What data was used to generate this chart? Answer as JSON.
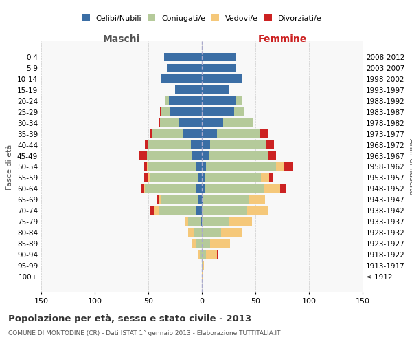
{
  "age_groups": [
    "100+",
    "95-99",
    "90-94",
    "85-89",
    "80-84",
    "75-79",
    "70-74",
    "65-69",
    "60-64",
    "55-59",
    "50-54",
    "45-49",
    "40-44",
    "35-39",
    "30-34",
    "25-29",
    "20-24",
    "15-19",
    "10-14",
    "5-9",
    "0-4"
  ],
  "birth_years": [
    "≤ 1912",
    "1913-1917",
    "1918-1922",
    "1923-1927",
    "1928-1932",
    "1933-1937",
    "1938-1942",
    "1943-1947",
    "1948-1952",
    "1953-1957",
    "1958-1962",
    "1963-1967",
    "1968-1972",
    "1973-1977",
    "1978-1982",
    "1983-1987",
    "1988-1992",
    "1993-1997",
    "1998-2002",
    "2003-2007",
    "2008-2012"
  ],
  "colors": {
    "celibi": "#3b6ea5",
    "coniugati": "#b5ca9a",
    "vedovi": "#f5c87a",
    "divorziati": "#cc2222"
  },
  "males": {
    "celibi": [
      0,
      0,
      0,
      0,
      0,
      1,
      5,
      3,
      5,
      4,
      5,
      9,
      10,
      18,
      22,
      30,
      31,
      25,
      38,
      33,
      35
    ],
    "coniugati": [
      0,
      0,
      2,
      5,
      8,
      12,
      35,
      35,
      48,
      45,
      45,
      42,
      40,
      28,
      17,
      8,
      3,
      0,
      0,
      0,
      0
    ],
    "vedovi": [
      0,
      0,
      2,
      4,
      5,
      3,
      5,
      2,
      1,
      1,
      1,
      0,
      0,
      0,
      0,
      0,
      0,
      0,
      0,
      0,
      0
    ],
    "divorziati": [
      0,
      0,
      0,
      0,
      0,
      0,
      3,
      2,
      3,
      4,
      3,
      8,
      3,
      3,
      1,
      1,
      0,
      0,
      0,
      0,
      0
    ]
  },
  "females": {
    "celibi": [
      0,
      0,
      0,
      0,
      0,
      0,
      0,
      1,
      3,
      3,
      4,
      7,
      8,
      14,
      20,
      30,
      32,
      25,
      38,
      32,
      32
    ],
    "coniugati": [
      0,
      1,
      4,
      8,
      18,
      25,
      42,
      43,
      55,
      52,
      65,
      55,
      52,
      40,
      28,
      10,
      5,
      0,
      0,
      0,
      0
    ],
    "vedovi": [
      1,
      1,
      10,
      18,
      20,
      22,
      20,
      15,
      15,
      8,
      8,
      0,
      0,
      0,
      0,
      0,
      0,
      0,
      0,
      0,
      0
    ],
    "divorziati": [
      0,
      0,
      1,
      0,
      0,
      0,
      0,
      0,
      5,
      3,
      8,
      7,
      7,
      8,
      0,
      0,
      0,
      0,
      0,
      0,
      0
    ]
  },
  "xlim": 150,
  "title": "Popolazione per età, sesso e stato civile - 2013",
  "subtitle": "COMUNE DI MONTODINE (CR) - Dati ISTAT 1° gennaio 2013 - Elaborazione TUTTITALIA.IT",
  "ylabel_left": "Fasce di età",
  "ylabel_right": "Anni di nascita",
  "xlabel_left": "Maschi",
  "xlabel_right": "Femmine",
  "bg_color": "#f8f8f8",
  "grid_color": "#cccccc"
}
